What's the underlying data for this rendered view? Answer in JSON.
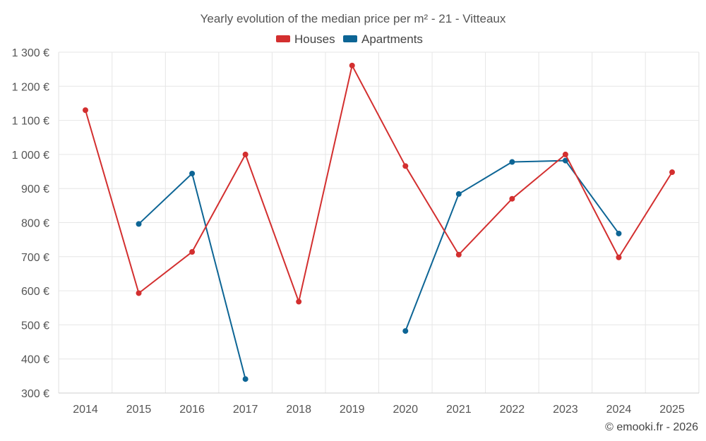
{
  "chart_data": {
    "type": "line",
    "title": "Yearly evolution of the median price per m² - 21 - Vitteaux",
    "xlabel": "",
    "ylabel": "",
    "x": [
      "2014",
      "2015",
      "2016",
      "2017",
      "2018",
      "2019",
      "2020",
      "2021",
      "2022",
      "2023",
      "2024",
      "2025"
    ],
    "ylim": [
      300,
      1300
    ],
    "y_ticks": [
      300,
      400,
      500,
      600,
      700,
      800,
      900,
      1000,
      1100,
      1200,
      1300
    ],
    "y_tick_labels": [
      "300 €",
      "400 €",
      "500 €",
      "600 €",
      "700 €",
      "800 €",
      "900 €",
      "1 000 €",
      "1 100 €",
      "1 200 €",
      "1 300 €"
    ],
    "grid": true,
    "legend_position": "top-center",
    "series": [
      {
        "name": "Houses",
        "color": "#d32f2f",
        "values": [
          1130,
          593,
          714,
          1000,
          568,
          1261,
          966,
          706,
          870,
          1000,
          698,
          948
        ]
      },
      {
        "name": "Apartments",
        "color": "#0d6595",
        "values": [
          null,
          796,
          944,
          341,
          null,
          null,
          482,
          884,
          978,
          982,
          768,
          null
        ]
      }
    ]
  },
  "credit": "© emooki.fr - 2026"
}
